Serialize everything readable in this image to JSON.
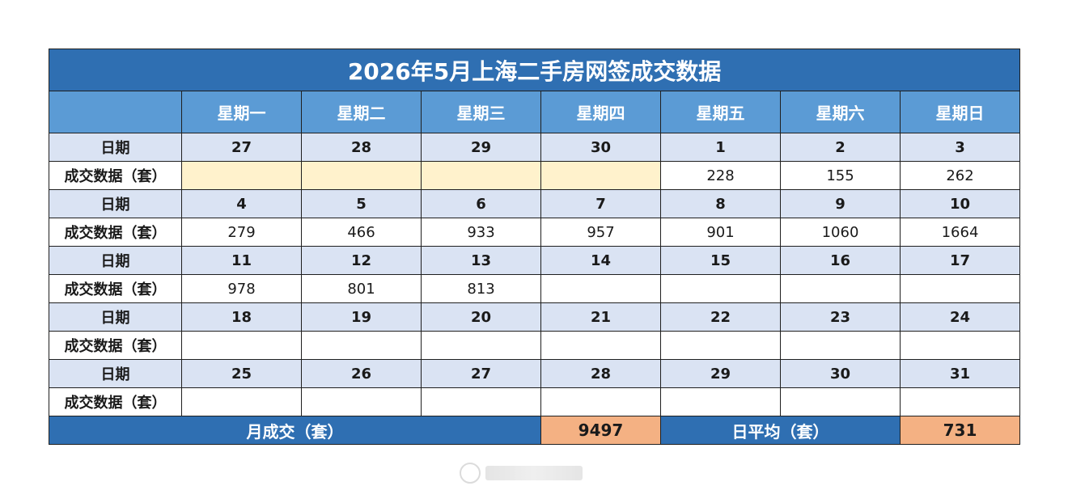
{
  "title": "2026年5月上海二手房网签成交数据",
  "weekdays": [
    "星期一",
    "星期二",
    "星期三",
    "星期四",
    "星期五",
    "星期六",
    "星期日"
  ],
  "date_label": "日期",
  "data_label": "成交数据（套）",
  "weeks": [
    {
      "dates": [
        "27",
        "28",
        "29",
        "30",
        "1",
        "2",
        "3"
      ],
      "values": [
        "",
        "",
        "",
        "",
        "228",
        "155",
        "262"
      ]
    },
    {
      "dates": [
        "4",
        "5",
        "6",
        "7",
        "8",
        "9",
        "10"
      ],
      "values": [
        "279",
        "466",
        "933",
        "957",
        "901",
        "1060",
        "1664"
      ]
    },
    {
      "dates": [
        "11",
        "12",
        "13",
        "14",
        "15",
        "16",
        "17"
      ],
      "values": [
        "978",
        "801",
        "813",
        "",
        "",
        "",
        ""
      ]
    },
    {
      "dates": [
        "18",
        "19",
        "20",
        "21",
        "22",
        "23",
        "24"
      ],
      "values": [
        "",
        "",
        "",
        "",
        "",
        "",
        ""
      ]
    },
    {
      "dates": [
        "25",
        "26",
        "27",
        "28",
        "29",
        "30",
        "31"
      ],
      "values": [
        "",
        "",
        "",
        "",
        "",
        "",
        ""
      ]
    }
  ],
  "summary": {
    "monthly_label": "月成交（套）",
    "monthly_value": "9497",
    "daily_label": "日平均（套）",
    "daily_value": "731"
  },
  "colors": {
    "title_bg": "#2f6fb2",
    "header_bg": "#5b9bd5",
    "date_row_bg": "#dae3f3",
    "out_of_month_bg": "#fff2cc",
    "summary_value_bg": "#f4b183"
  }
}
